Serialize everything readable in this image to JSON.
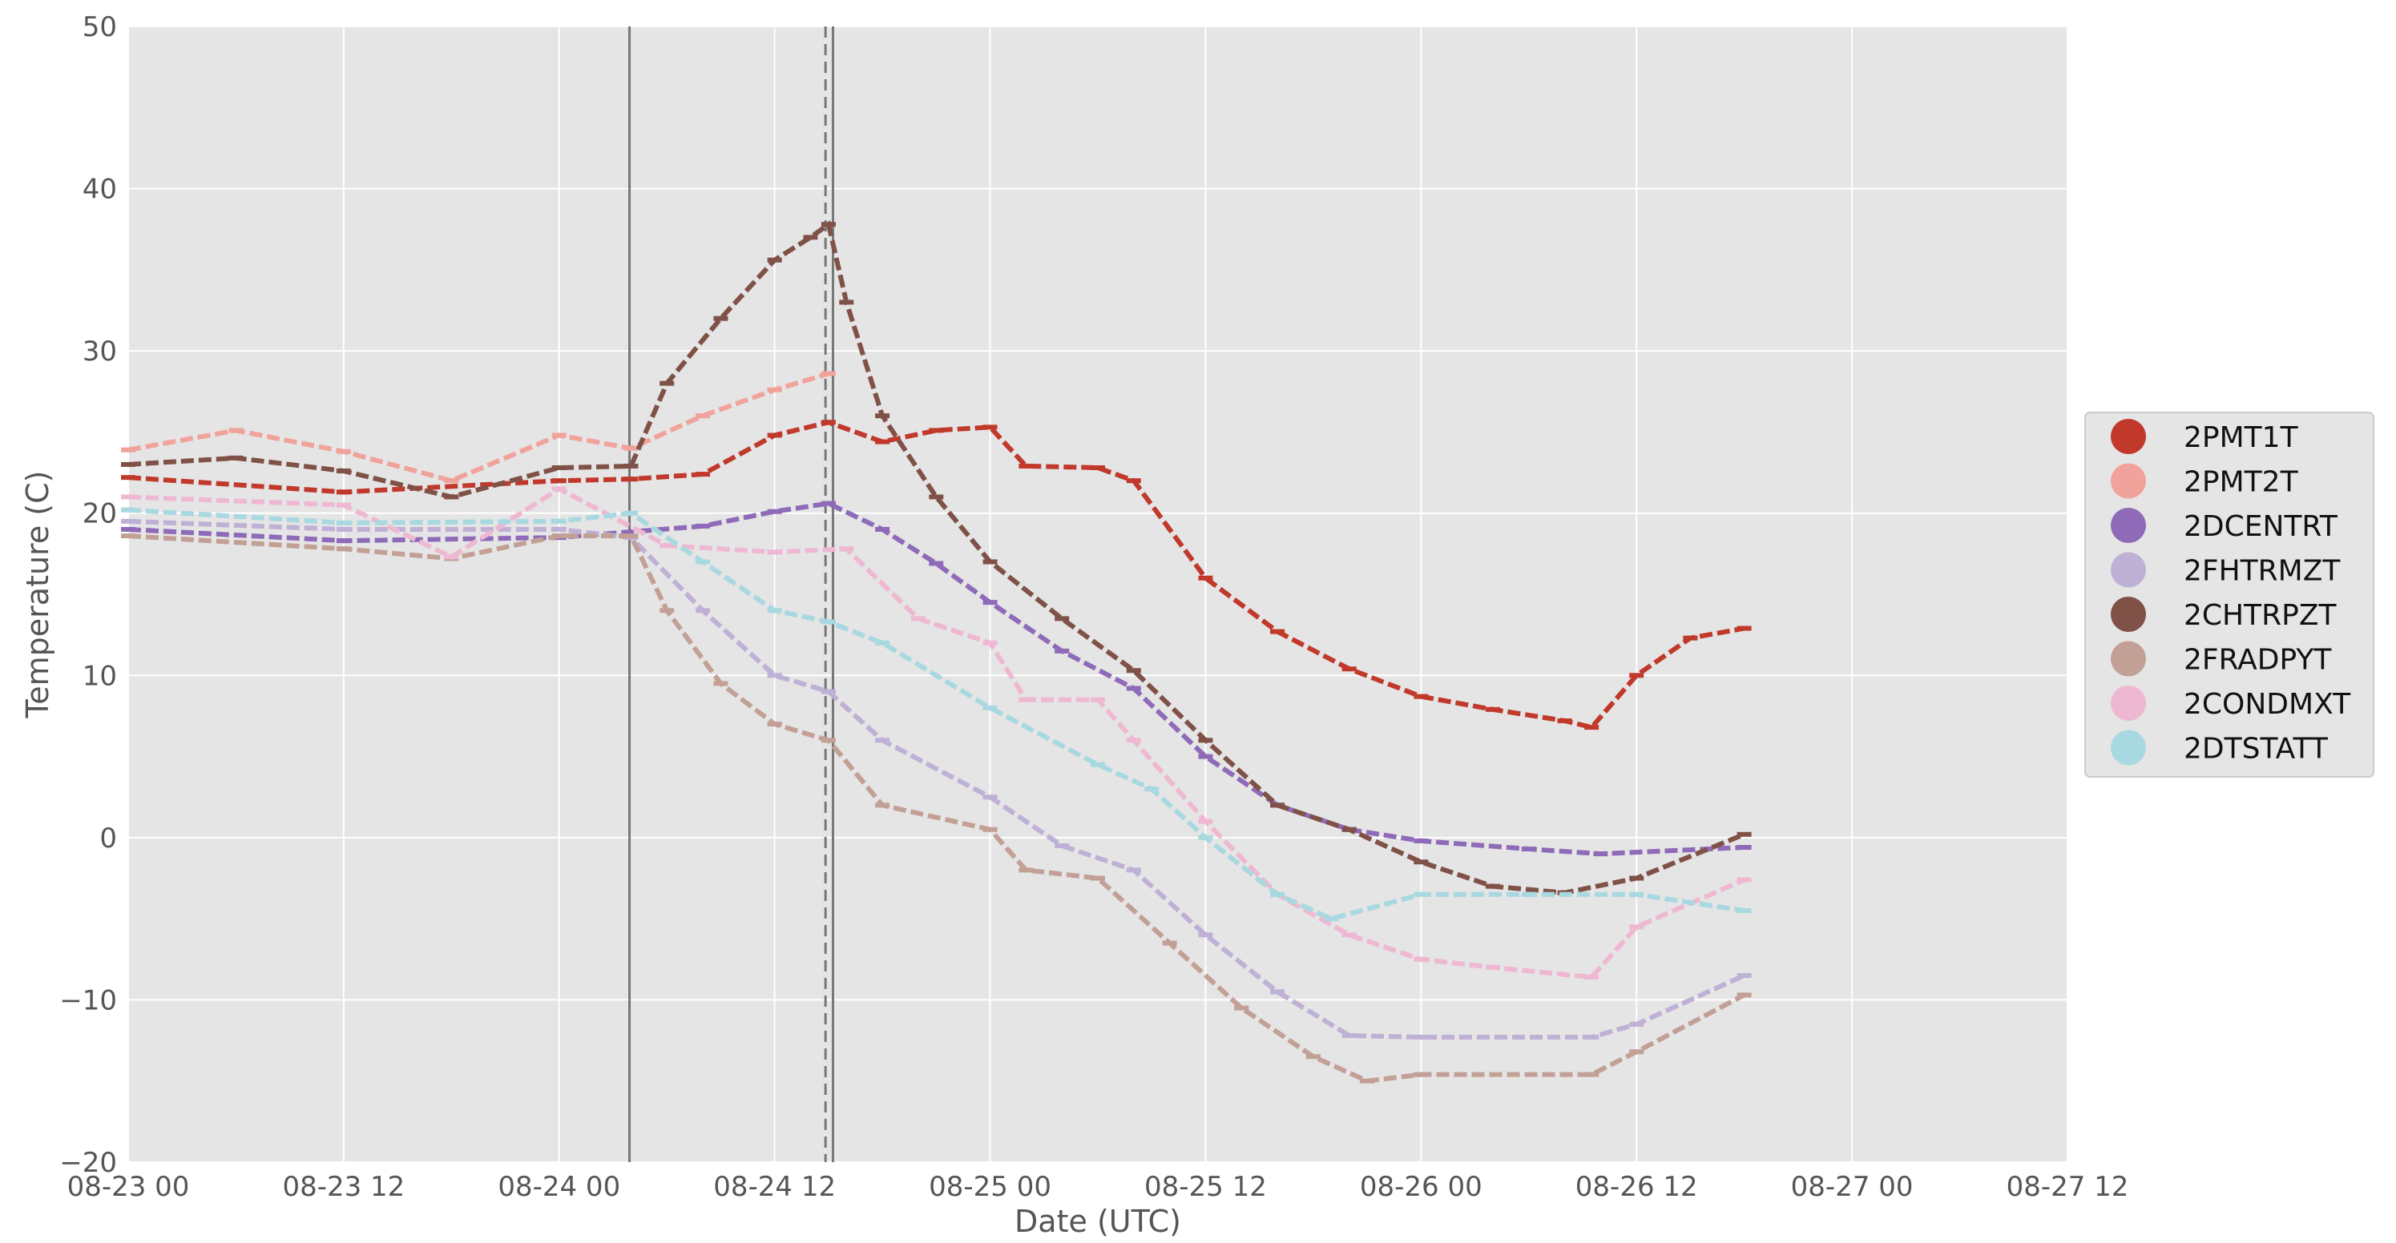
{
  "chart_data": {
    "type": "scatter",
    "title": "",
    "xlabel": "Date (UTC)",
    "ylabel": "Temperature (C)",
    "xlim": [
      "2022-08-23 00:00",
      "2022-08-27 12:00"
    ],
    "ylim": [
      -20,
      50
    ],
    "grid": true,
    "legend_position": "center-right",
    "x_ticks": [
      "08-23 00",
      "08-23 12",
      "08-24 00",
      "08-24 12",
      "08-25 00",
      "08-25 12",
      "08-26 00",
      "08-26 12",
      "08-27 00",
      "08-27 12"
    ],
    "y_ticks": [
      "−20",
      "−10",
      "0",
      "10",
      "20",
      "30",
      "40",
      "50"
    ],
    "vertical_lines": [
      {
        "x": "2022-08-24 03:55",
        "style": "solid"
      },
      {
        "x": "2022-08-24 14:50",
        "style": "dashed"
      },
      {
        "x": "2022-08-24 15:15",
        "style": "solid"
      }
    ],
    "series": [
      {
        "name": "2PMT1T",
        "color": "#c0392b",
        "points": [
          [
            "2022-08-23 00:00",
            22.2
          ],
          [
            "2022-08-23 12:00",
            21.3
          ],
          [
            "2022-08-24 00:00",
            22.0
          ],
          [
            "2022-08-24 04:00",
            22.1
          ],
          [
            "2022-08-24 08:00",
            22.4
          ],
          [
            "2022-08-24 12:00",
            24.8
          ],
          [
            "2022-08-24 15:00",
            25.6
          ],
          [
            "2022-08-24 18:00",
            24.4
          ],
          [
            "2022-08-24 21:00",
            25.1
          ],
          [
            "2022-08-25 00:00",
            25.3
          ],
          [
            "2022-08-25 02:00",
            22.9
          ],
          [
            "2022-08-25 06:00",
            22.8
          ],
          [
            "2022-08-25 08:00",
            22.0
          ],
          [
            "2022-08-25 12:00",
            16.0
          ],
          [
            "2022-08-25 16:00",
            12.7
          ],
          [
            "2022-08-25 20:00",
            10.4
          ],
          [
            "2022-08-26 00:00",
            8.7
          ],
          [
            "2022-08-26 04:00",
            7.9
          ],
          [
            "2022-08-26 08:00",
            7.2
          ],
          [
            "2022-08-26 09:30",
            6.8
          ],
          [
            "2022-08-26 12:00",
            10.0
          ],
          [
            "2022-08-26 15:00",
            12.3
          ],
          [
            "2022-08-26 18:00",
            12.9
          ]
        ]
      },
      {
        "name": "2PMT2T",
        "color": "#f1a29a",
        "points": [
          [
            "2022-08-23 00:00",
            23.9
          ],
          [
            "2022-08-23 06:00",
            25.1
          ],
          [
            "2022-08-23 12:00",
            23.8
          ],
          [
            "2022-08-23 18:00",
            22.0
          ],
          [
            "2022-08-24 00:00",
            24.8
          ],
          [
            "2022-08-24 04:00",
            24.0
          ],
          [
            "2022-08-24 08:00",
            26.0
          ],
          [
            "2022-08-24 12:00",
            27.6
          ],
          [
            "2022-08-24 15:00",
            28.6
          ]
        ]
      },
      {
        "name": "2DCENTRT",
        "color": "#8e6ab8",
        "points": [
          [
            "2022-08-23 00:00",
            19.0
          ],
          [
            "2022-08-23 12:00",
            18.3
          ],
          [
            "2022-08-24 00:00",
            18.5
          ],
          [
            "2022-08-24 08:00",
            19.2
          ],
          [
            "2022-08-24 12:00",
            20.1
          ],
          [
            "2022-08-24 15:00",
            20.6
          ],
          [
            "2022-08-24 18:00",
            19.0
          ],
          [
            "2022-08-24 21:00",
            16.9
          ],
          [
            "2022-08-25 00:00",
            14.5
          ],
          [
            "2022-08-25 04:00",
            11.5
          ],
          [
            "2022-08-25 08:00",
            9.2
          ],
          [
            "2022-08-25 12:00",
            5.0
          ],
          [
            "2022-08-25 16:00",
            2.0
          ],
          [
            "2022-08-25 20:00",
            0.5
          ],
          [
            "2022-08-26 00:00",
            -0.2
          ],
          [
            "2022-08-26 06:00",
            -0.7
          ],
          [
            "2022-08-26 10:00",
            -1.0
          ],
          [
            "2022-08-26 18:00",
            -0.6
          ]
        ]
      },
      {
        "name": "2FHTRMZT",
        "color": "#bfb0d6",
        "points": [
          [
            "2022-08-23 00:00",
            19.5
          ],
          [
            "2022-08-23 12:00",
            19.0
          ],
          [
            "2022-08-24 00:00",
            19.0
          ],
          [
            "2022-08-24 04:00",
            18.5
          ],
          [
            "2022-08-24 08:00",
            14.0
          ],
          [
            "2022-08-24 12:00",
            10.0
          ],
          [
            "2022-08-24 15:00",
            9.0
          ],
          [
            "2022-08-24 18:00",
            6.0
          ],
          [
            "2022-08-25 00:00",
            2.5
          ],
          [
            "2022-08-25 04:00",
            -0.5
          ],
          [
            "2022-08-25 08:00",
            -2.0
          ],
          [
            "2022-08-25 12:00",
            -6.0
          ],
          [
            "2022-08-25 16:00",
            -9.5
          ],
          [
            "2022-08-25 20:00",
            -12.2
          ],
          [
            "2022-08-26 00:00",
            -12.3
          ],
          [
            "2022-08-26 09:30",
            -12.3
          ],
          [
            "2022-08-26 12:00",
            -11.5
          ],
          [
            "2022-08-26 18:00",
            -8.5
          ]
        ]
      },
      {
        "name": "2CHTRPZT",
        "color": "#7f5147",
        "points": [
          [
            "2022-08-23 00:00",
            23.0
          ],
          [
            "2022-08-23 06:00",
            23.4
          ],
          [
            "2022-08-23 12:00",
            22.6
          ],
          [
            "2022-08-23 18:00",
            21.0
          ],
          [
            "2022-08-24 00:00",
            22.8
          ],
          [
            "2022-08-24 04:00",
            22.9
          ],
          [
            "2022-08-24 06:00",
            28.0
          ],
          [
            "2022-08-24 09:00",
            32.0
          ],
          [
            "2022-08-24 12:00",
            35.6
          ],
          [
            "2022-08-24 14:00",
            37.0
          ],
          [
            "2022-08-24 15:00",
            37.8
          ],
          [
            "2022-08-24 16:00",
            33.0
          ],
          [
            "2022-08-24 18:00",
            26.0
          ],
          [
            "2022-08-24 21:00",
            21.0
          ],
          [
            "2022-08-25 00:00",
            17.0
          ],
          [
            "2022-08-25 04:00",
            13.5
          ],
          [
            "2022-08-25 08:00",
            10.3
          ],
          [
            "2022-08-25 12:00",
            6.0
          ],
          [
            "2022-08-25 16:00",
            2.0
          ],
          [
            "2022-08-25 20:00",
            0.5
          ],
          [
            "2022-08-26 00:00",
            -1.5
          ],
          [
            "2022-08-26 04:00",
            -3.0
          ],
          [
            "2022-08-26 08:00",
            -3.4
          ],
          [
            "2022-08-26 12:00",
            -2.5
          ],
          [
            "2022-08-26 18:00",
            0.2
          ]
        ]
      },
      {
        "name": "2FRADPYT",
        "color": "#c2a096",
        "points": [
          [
            "2022-08-23 00:00",
            18.6
          ],
          [
            "2022-08-23 12:00",
            17.8
          ],
          [
            "2022-08-23 18:00",
            17.2
          ],
          [
            "2022-08-24 00:00",
            18.6
          ],
          [
            "2022-08-24 04:00",
            18.6
          ],
          [
            "2022-08-24 06:00",
            14.0
          ],
          [
            "2022-08-24 09:00",
            9.5
          ],
          [
            "2022-08-24 12:00",
            7.0
          ],
          [
            "2022-08-24 15:00",
            6.0
          ],
          [
            "2022-08-24 18:00",
            2.0
          ],
          [
            "2022-08-25 00:00",
            0.5
          ],
          [
            "2022-08-25 02:00",
            -2.0
          ],
          [
            "2022-08-25 06:00",
            -2.5
          ],
          [
            "2022-08-25 10:00",
            -6.5
          ],
          [
            "2022-08-25 14:00",
            -10.5
          ],
          [
            "2022-08-25 18:00",
            -13.5
          ],
          [
            "2022-08-25 21:00",
            -15.0
          ],
          [
            "2022-08-26 00:00",
            -14.6
          ],
          [
            "2022-08-26 09:30",
            -14.6
          ],
          [
            "2022-08-26 12:00",
            -13.2
          ],
          [
            "2022-08-26 18:00",
            -9.7
          ]
        ]
      },
      {
        "name": "2CONDMXT",
        "color": "#efb8d2",
        "points": [
          [
            "2022-08-23 00:00",
            21.0
          ],
          [
            "2022-08-23 12:00",
            20.5
          ],
          [
            "2022-08-23 18:00",
            17.3
          ],
          [
            "2022-08-24 00:00",
            21.5
          ],
          [
            "2022-08-24 06:00",
            18.0
          ],
          [
            "2022-08-24 12:00",
            17.6
          ],
          [
            "2022-08-24 16:00",
            17.8
          ],
          [
            "2022-08-24 20:00",
            13.5
          ],
          [
            "2022-08-25 00:00",
            12.0
          ],
          [
            "2022-08-25 02:00",
            8.5
          ],
          [
            "2022-08-25 06:00",
            8.5
          ],
          [
            "2022-08-25 08:00",
            6.0
          ],
          [
            "2022-08-25 12:00",
            1.0
          ],
          [
            "2022-08-25 16:00",
            -3.5
          ],
          [
            "2022-08-25 20:00",
            -6.0
          ],
          [
            "2022-08-26 00:00",
            -7.5
          ],
          [
            "2022-08-26 04:00",
            -8.0
          ],
          [
            "2022-08-26 09:30",
            -8.6
          ],
          [
            "2022-08-26 12:00",
            -5.5
          ],
          [
            "2022-08-26 18:00",
            -2.6
          ]
        ]
      },
      {
        "name": "2DTSTATT",
        "color": "#a8d8e0",
        "points": [
          [
            "2022-08-23 00:00",
            20.2
          ],
          [
            "2022-08-23 12:00",
            19.4
          ],
          [
            "2022-08-24 00:00",
            19.5
          ],
          [
            "2022-08-24 04:00",
            20.0
          ],
          [
            "2022-08-24 08:00",
            17.0
          ],
          [
            "2022-08-24 12:00",
            14.0
          ],
          [
            "2022-08-24 15:00",
            13.3
          ],
          [
            "2022-08-24 18:00",
            12.0
          ],
          [
            "2022-08-25 00:00",
            8.0
          ],
          [
            "2022-08-25 06:00",
            4.5
          ],
          [
            "2022-08-25 09:00",
            3.0
          ],
          [
            "2022-08-25 12:00",
            0.0
          ],
          [
            "2022-08-25 16:00",
            -3.5
          ],
          [
            "2022-08-25 19:00",
            -5.0
          ],
          [
            "2022-08-26 00:00",
            -3.5
          ],
          [
            "2022-08-26 06:00",
            -3.5
          ],
          [
            "2022-08-26 12:00",
            -3.5
          ],
          [
            "2022-08-26 18:00",
            -4.5
          ]
        ]
      }
    ]
  }
}
